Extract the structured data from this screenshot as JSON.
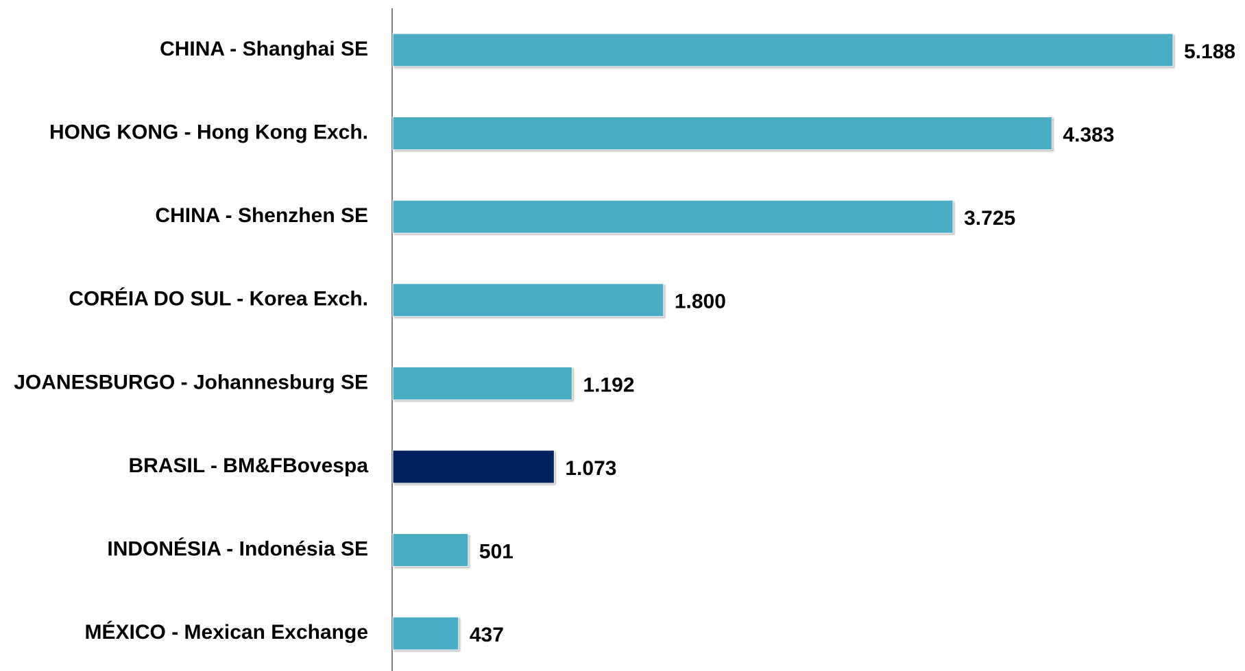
{
  "chart_data": {
    "type": "hbar",
    "categories": [
      "CHINA - Shanghai SE",
      "HONG KONG - Hong Kong Exch.",
      "CHINA - Shenzhen SE",
      "CORÉIA DO SUL - Korea Exch.",
      "JOANESBURGO - Johannesburg SE",
      "BRASIL - BM&FBovespa",
      "INDONÉSIA - Indonésia SE",
      "MÉXICO - Mexican Exchange"
    ],
    "values": [
      5188,
      4383,
      3725,
      1800,
      1192,
      1073,
      501,
      437
    ],
    "value_labels": [
      "5.188",
      "4.383",
      "3.725",
      "1.800",
      "1.192",
      "1.073",
      "501",
      "437"
    ],
    "colors": [
      "#4bacc6",
      "#4bacc6",
      "#4bacc6",
      "#4bacc6",
      "#4bacc6",
      "#002060",
      "#4bacc6",
      "#4bacc6"
    ]
  }
}
